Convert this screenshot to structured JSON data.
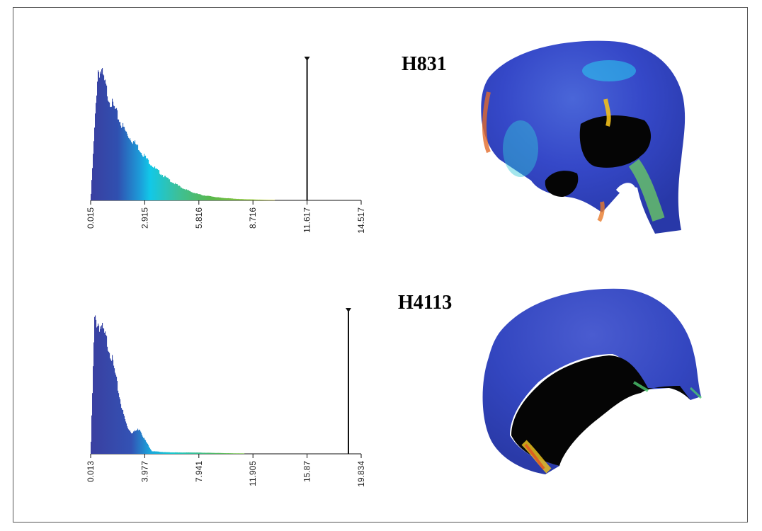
{
  "panels": [
    {
      "specimen": "H831",
      "ticks": [
        "0.015",
        "2.915",
        "5.816",
        "8.716",
        "11.617",
        "14.517"
      ],
      "scalebar_value": 11.617
    },
    {
      "specimen": "H4113",
      "ticks": [
        "0.013",
        "3.977",
        "7.941",
        "11.905",
        "15.87",
        "19.834"
      ],
      "scalebar_value": 18.9
    }
  ],
  "chart_data": [
    {
      "type": "bar",
      "title": "H831",
      "xlabel": "",
      "ylabel": "",
      "xlim": [
        0.015,
        14.517
      ],
      "x_ticks": [
        0.015,
        2.915,
        5.816,
        8.716,
        11.617,
        14.517
      ],
      "marker_at": 11.617,
      "x": [
        0.015,
        0.4,
        0.6,
        0.8,
        1.0,
        1.3,
        1.6,
        2.0,
        2.5,
        3.0,
        3.5,
        4.0,
        4.5,
        5.0,
        5.5,
        6.0,
        6.5,
        7.0,
        7.5,
        8.0,
        8.5,
        9.0,
        9.5,
        10.0,
        10.5,
        11.0,
        11.617
      ],
      "values": [
        0,
        1.0,
        0.98,
        0.88,
        0.78,
        0.7,
        0.6,
        0.5,
        0.42,
        0.32,
        0.24,
        0.18,
        0.13,
        0.09,
        0.06,
        0.04,
        0.03,
        0.02,
        0.015,
        0.01,
        0.008,
        0.006,
        0.004,
        0.003,
        0.002,
        0.001,
        0
      ]
    },
    {
      "type": "bar",
      "title": "H4113",
      "xlabel": "",
      "ylabel": "",
      "xlim": [
        0.013,
        19.834
      ],
      "x_ticks": [
        0.013,
        3.977,
        7.941,
        11.905,
        15.87,
        19.834
      ],
      "marker_at": 18.9,
      "x": [
        0.013,
        0.3,
        0.6,
        0.9,
        1.2,
        1.5,
        1.8,
        2.1,
        2.4,
        2.7,
        3.0,
        3.3,
        3.6,
        3.9,
        4.5,
        5.5,
        6.5,
        7.5,
        8.5,
        9.5,
        10.5,
        11.5,
        12.5,
        13.5,
        14.5,
        15.5,
        16.5
      ],
      "values": [
        0,
        1.0,
        0.97,
        0.92,
        0.84,
        0.74,
        0.6,
        0.44,
        0.3,
        0.2,
        0.16,
        0.17,
        0.19,
        0.12,
        0.02,
        0.012,
        0.01,
        0.01,
        0.008,
        0.006,
        0.004,
        0.003,
        0.002,
        0.002,
        0.001,
        0.001,
        0
      ]
    }
  ]
}
